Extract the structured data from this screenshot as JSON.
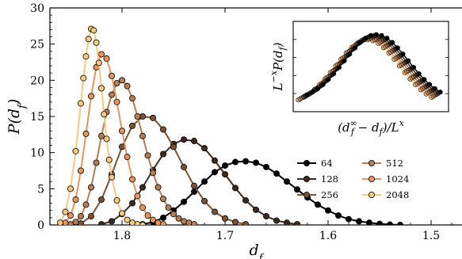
{
  "chart_data": {
    "type": "line",
    "xlabel": "d_f",
    "ylabel": "P(d_f)",
    "xlim": [
      1.87,
      1.47
    ],
    "ylim": [
      0,
      30
    ],
    "x_reversed": true,
    "xticks": [
      "1.8",
      "1.7",
      "1.6",
      "1.5"
    ],
    "yticks": [
      "0",
      "5",
      "10",
      "15",
      "20",
      "25",
      "30"
    ],
    "legend_position": "right",
    "series": [
      {
        "name": "64",
        "color": "#000000",
        "x": [
          1.79,
          1.78,
          1.77,
          1.76,
          1.75,
          1.74,
          1.73,
          1.72,
          1.71,
          1.7,
          1.69,
          1.68,
          1.67,
          1.66,
          1.65,
          1.64,
          1.63,
          1.62,
          1.61,
          1.6,
          1.59,
          1.58,
          1.57,
          1.56,
          1.55,
          1.54,
          1.53
        ],
        "y": [
          0.0,
          0.1,
          0.4,
          1.0,
          2.0,
          3.2,
          4.6,
          6.0,
          7.3,
          8.2,
          8.7,
          8.8,
          8.6,
          8.0,
          7.1,
          6.0,
          4.9,
          3.8,
          2.8,
          2.0,
          1.3,
          0.8,
          0.5,
          0.3,
          0.15,
          0.05,
          0.0
        ]
      },
      {
        "name": "128",
        "color": "#3b2a1e",
        "x": [
          1.82,
          1.81,
          1.8,
          1.79,
          1.78,
          1.77,
          1.76,
          1.75,
          1.74,
          1.73,
          1.72,
          1.71,
          1.7,
          1.69,
          1.68,
          1.67,
          1.66,
          1.65,
          1.64,
          1.63
        ],
        "y": [
          0.1,
          0.5,
          1.5,
          3.0,
          5.2,
          7.6,
          9.8,
          11.2,
          11.8,
          11.6,
          10.6,
          8.9,
          7.0,
          5.1,
          3.4,
          2.1,
          1.2,
          0.6,
          0.3,
          0.1
        ]
      },
      {
        "name": "256",
        "color": "#7a5236",
        "x": [
          1.84,
          1.83,
          1.82,
          1.81,
          1.8,
          1.79,
          1.78,
          1.77,
          1.76,
          1.75,
          1.74,
          1.73,
          1.72,
          1.71,
          1.7,
          1.69,
          1.68
        ],
        "y": [
          0.2,
          1.2,
          3.5,
          7.0,
          10.8,
          13.7,
          15.0,
          14.8,
          13.2,
          10.8,
          8.0,
          5.4,
          3.3,
          1.8,
          0.9,
          0.4,
          0.1
        ]
      },
      {
        "name": "512",
        "color": "#b57e55",
        "x": [
          1.85,
          1.845,
          1.84,
          1.835,
          1.83,
          1.825,
          1.82,
          1.815,
          1.81,
          1.805,
          1.8,
          1.795,
          1.79,
          1.785,
          1.78,
          1.775,
          1.77,
          1.765,
          1.76,
          1.755,
          1.75,
          1.745,
          1.74,
          1.735,
          1.73
        ],
        "y": [
          0.1,
          0.4,
          1.2,
          2.8,
          5.2,
          8.6,
          12.3,
          15.6,
          18.0,
          19.6,
          20.0,
          19.2,
          17.5,
          15.0,
          12.3,
          9.6,
          7.2,
          5.2,
          3.6,
          2.4,
          1.5,
          0.9,
          0.5,
          0.3,
          0.1
        ]
      },
      {
        "name": "1024",
        "color": "#e4955f",
        "x": [
          1.855,
          1.85,
          1.845,
          1.84,
          1.835,
          1.83,
          1.825,
          1.82,
          1.815,
          1.81,
          1.805,
          1.8,
          1.795,
          1.79,
          1.785,
          1.78,
          1.775,
          1.77,
          1.765,
          1.76
        ],
        "y": [
          0.3,
          1.3,
          3.5,
          7.5,
          12.6,
          17.8,
          21.8,
          23.6,
          23.0,
          20.6,
          17.0,
          13.0,
          9.4,
          6.3,
          4.0,
          2.4,
          1.3,
          0.7,
          0.3,
          0.1
        ]
      },
      {
        "name": "2048",
        "color": "#f6c97f",
        "x": [
          1.86,
          1.855,
          1.85,
          1.845,
          1.84,
          1.8375,
          1.835,
          1.8325,
          1.83,
          1.8275,
          1.825,
          1.8225,
          1.82,
          1.8175,
          1.815,
          1.8125,
          1.81,
          1.805,
          1.8,
          1.795,
          1.79,
          1.785,
          1.78
        ],
        "y": [
          0.3,
          1.8,
          5.0,
          10.2,
          16.8,
          20.3,
          23.3,
          25.7,
          27.1,
          26.9,
          25.2,
          22.4,
          18.9,
          15.3,
          11.9,
          9.0,
          6.6,
          3.4,
          1.6,
          0.7,
          0.3,
          0.1,
          0.0
        ]
      }
    ],
    "inset": {
      "xlabel": "(d_f^∞ − d_f)/L^x",
      "ylabel": "L^−x P(d_f)",
      "description_points": "scaling collapse of all series"
    }
  }
}
